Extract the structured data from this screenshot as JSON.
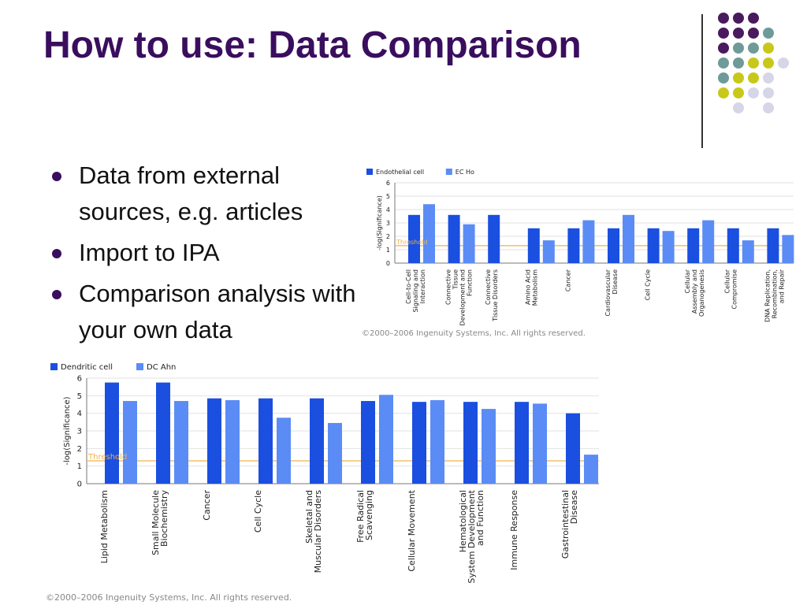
{
  "slide": {
    "title": "How to use: Data Comparison",
    "bullets": [
      "Data from external sources, e.g. articles",
      "Import to IPA",
      "Comparison analysis with your own data"
    ]
  },
  "colors": {
    "title": "#3a0e5e",
    "series_dark": "#1a4fe0",
    "series_light": "#5b8cf5",
    "threshold": "#f0b24a",
    "dot_purple": "#4a1a5e",
    "dot_teal": "#6f9a9a",
    "dot_yellow": "#c8c81a",
    "dot_lavender": "#d6d6e8"
  },
  "decoration": {
    "dot_rows": [
      [
        "purple",
        "purple",
        "purple",
        "none"
      ],
      [
        "purple",
        "purple",
        "purple",
        "teal"
      ],
      [
        "purple",
        "teal",
        "teal",
        "yellow"
      ],
      [
        "teal",
        "teal",
        "yellow",
        "yellow",
        "lavender"
      ],
      [
        "teal",
        "yellow",
        "yellow",
        "lavender"
      ],
      [
        "yellow",
        "yellow",
        "lavender",
        "lavender"
      ],
      [
        "none",
        "lavender",
        "none",
        "lavender"
      ]
    ]
  },
  "chart_data": [
    {
      "type": "bar",
      "legend": [
        "Endothelial cell",
        "EC Ho"
      ],
      "legend_position": "top-left",
      "ylabel": "-log(Significance)",
      "ylim": [
        0,
        6
      ],
      "yticks": [
        "0",
        "1",
        "2",
        "3",
        "4",
        "5",
        "6"
      ],
      "threshold": {
        "label": "Threshold",
        "value": 1.3
      },
      "grid": true,
      "categories": [
        "Cell-to-Cell Signaling and Interaction",
        "Connective Tissue Development and Function",
        "Connective Tissue Disorders",
        "Amino Acid Metabolism",
        "Cancer",
        "Cardiovascular Disease",
        "Cell Cycle",
        "Cellular Assembly and Organogenesis",
        "Cellular Compromise",
        "DNA Replication, Recombination, and Repair"
      ],
      "series": [
        {
          "name": "Endothelial cell",
          "values": [
            3.6,
            3.6,
            3.6,
            2.6,
            2.6,
            2.6,
            2.6,
            2.6,
            2.6,
            2.6
          ]
        },
        {
          "name": "EC Ho",
          "values": [
            4.4,
            2.9,
            0,
            1.7,
            3.2,
            3.6,
            2.4,
            3.2,
            1.7,
            2.1
          ]
        }
      ],
      "copyright": "©2000–2006 Ingenuity Systems, Inc. All rights reserved."
    },
    {
      "type": "bar",
      "legend": [
        "Dendritic cell",
        "DC Ahn"
      ],
      "legend_position": "top-left",
      "ylabel": "-log(Significance)",
      "ylim": [
        0,
        6
      ],
      "yticks": [
        "0",
        "1",
        "2",
        "3",
        "4",
        "5",
        "6"
      ],
      "threshold": {
        "label": "Threshold",
        "value": 1.3
      },
      "grid": true,
      "categories": [
        "Lipid Metabolism",
        "Small Molecule Biochemistry",
        "Cancer",
        "Cell Cycle",
        "Skeletal and Muscular Disorders",
        "Free Radical Scavenging",
        "Cellular Movement",
        "Hematological System Development and Function",
        "Immune Response",
        "Gastrointestinal Disease"
      ],
      "series": [
        {
          "name": "Dendritic cell",
          "values": [
            5.75,
            5.75,
            4.85,
            4.85,
            4.85,
            4.7,
            4.65,
            4.65,
            4.65,
            4.0
          ]
        },
        {
          "name": "DC Ahn",
          "values": [
            4.7,
            4.7,
            4.75,
            3.75,
            3.45,
            5.05,
            4.75,
            4.25,
            4.55,
            1.65
          ]
        }
      ],
      "copyright": "©2000–2006 Ingenuity Systems, Inc. All rights reserved."
    }
  ]
}
